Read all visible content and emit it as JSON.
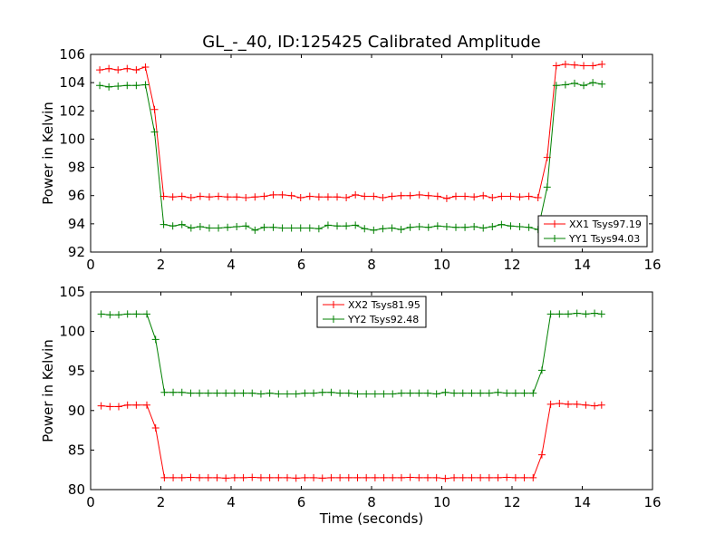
{
  "chart_data": [
    {
      "type": "line",
      "title": "GL_-_40, ID:125425 Calibrated Amplitude",
      "xlabel": "",
      "ylabel": "Power in Kelvin",
      "xlim": [
        0,
        16
      ],
      "ylim": [
        92,
        106
      ],
      "xticks": [
        "0",
        "2",
        "4",
        "6",
        "8",
        "10",
        "12",
        "14",
        "16"
      ],
      "yticks": [
        "92",
        "94",
        "96",
        "98",
        "100",
        "102",
        "104",
        "106"
      ],
      "legend_position": "lower-right",
      "x": [
        0.26,
        0.52,
        0.78,
        1.04,
        1.3,
        1.56,
        1.82,
        2.08,
        2.34,
        2.6,
        2.86,
        3.12,
        3.38,
        3.64,
        3.9,
        4.16,
        4.42,
        4.68,
        4.94,
        5.2,
        5.46,
        5.72,
        5.98,
        6.24,
        6.5,
        6.76,
        7.02,
        7.28,
        7.54,
        7.8,
        8.06,
        8.32,
        8.58,
        8.84,
        9.1,
        9.36,
        9.62,
        9.88,
        10.14,
        10.4,
        10.66,
        10.92,
        11.18,
        11.44,
        11.7,
        11.96,
        12.22,
        12.48,
        12.74,
        13.0,
        13.26,
        13.52,
        13.78,
        14.04,
        14.3,
        14.56
      ],
      "series": [
        {
          "name": "XX1 Tsys97.19",
          "color": "#ff0000",
          "values": [
            104.9,
            105.0,
            104.9,
            105.0,
            104.9,
            105.1,
            102.1,
            95.95,
            95.9,
            95.95,
            95.85,
            95.95,
            95.9,
            95.95,
            95.9,
            95.9,
            95.85,
            95.9,
            95.95,
            96.05,
            96.05,
            96.0,
            95.85,
            95.95,
            95.9,
            95.9,
            95.9,
            95.85,
            96.05,
            95.95,
            95.95,
            95.85,
            95.95,
            96.0,
            96.0,
            96.05,
            96.0,
            95.95,
            95.8,
            95.95,
            95.95,
            95.9,
            96.0,
            95.85,
            95.95,
            95.95,
            95.9,
            95.95,
            95.85,
            98.7,
            105.2,
            105.3,
            105.25,
            105.2,
            105.2,
            105.3
          ]
        },
        {
          "name": "YY1 Tsys94.03",
          "color": "#008000",
          "values": [
            103.8,
            103.7,
            103.75,
            103.8,
            103.8,
            103.85,
            100.5,
            93.95,
            93.85,
            93.95,
            93.7,
            93.8,
            93.7,
            93.7,
            93.75,
            93.8,
            93.85,
            93.55,
            93.75,
            93.75,
            93.7,
            93.7,
            93.7,
            93.7,
            93.65,
            93.9,
            93.85,
            93.85,
            93.9,
            93.65,
            93.55,
            93.65,
            93.7,
            93.6,
            93.75,
            93.8,
            93.75,
            93.85,
            93.8,
            93.75,
            93.75,
            93.8,
            93.7,
            93.8,
            93.95,
            93.85,
            93.8,
            93.75,
            93.6,
            96.6,
            103.8,
            103.85,
            103.95,
            103.8,
            104.0,
            103.9
          ]
        }
      ]
    },
    {
      "type": "line",
      "title": "",
      "xlabel": "Time (seconds)",
      "ylabel": "Power in Kelvin",
      "xlim": [
        0,
        16
      ],
      "ylim": [
        80,
        105
      ],
      "xticks": [
        "0",
        "2",
        "4",
        "6",
        "8",
        "10",
        "12",
        "14",
        "16"
      ],
      "yticks": [
        "80",
        "85",
        "90",
        "95",
        "100",
        "105"
      ],
      "legend_position": "upper-center",
      "x": [
        0.3,
        0.55,
        0.8,
        1.05,
        1.3,
        1.6,
        1.85,
        2.1,
        2.35,
        2.6,
        2.85,
        3.1,
        3.35,
        3.6,
        3.85,
        4.1,
        4.35,
        4.6,
        4.85,
        5.1,
        5.35,
        5.6,
        5.85,
        6.1,
        6.35,
        6.6,
        6.85,
        7.1,
        7.35,
        7.6,
        7.85,
        8.1,
        8.35,
        8.6,
        8.85,
        9.1,
        9.35,
        9.6,
        9.85,
        10.1,
        10.35,
        10.6,
        10.85,
        11.1,
        11.35,
        11.6,
        11.85,
        12.1,
        12.35,
        12.6,
        12.85,
        13.1,
        13.35,
        13.6,
        13.85,
        14.1,
        14.35,
        14.55
      ],
      "series": [
        {
          "name": "XX2 Tsys81.95",
          "color": "#ff0000",
          "values": [
            90.6,
            90.5,
            90.5,
            90.7,
            90.7,
            90.7,
            87.8,
            81.5,
            81.5,
            81.5,
            81.55,
            81.5,
            81.5,
            81.5,
            81.45,
            81.5,
            81.5,
            81.55,
            81.5,
            81.5,
            81.5,
            81.5,
            81.45,
            81.5,
            81.5,
            81.45,
            81.5,
            81.5,
            81.5,
            81.5,
            81.5,
            81.5,
            81.5,
            81.5,
            81.5,
            81.55,
            81.5,
            81.5,
            81.5,
            81.4,
            81.5,
            81.5,
            81.5,
            81.5,
            81.5,
            81.5,
            81.55,
            81.5,
            81.5,
            81.5,
            84.4,
            90.8,
            90.9,
            90.8,
            90.8,
            90.7,
            90.6,
            90.7
          ]
        },
        {
          "name": "YY2 Tsys92.48",
          "color": "#008000",
          "values": [
            102.2,
            102.1,
            102.1,
            102.2,
            102.2,
            102.2,
            99.0,
            92.3,
            92.3,
            92.3,
            92.2,
            92.2,
            92.2,
            92.2,
            92.2,
            92.2,
            92.2,
            92.2,
            92.1,
            92.2,
            92.1,
            92.1,
            92.1,
            92.2,
            92.2,
            92.3,
            92.3,
            92.2,
            92.2,
            92.1,
            92.1,
            92.1,
            92.1,
            92.1,
            92.2,
            92.2,
            92.2,
            92.2,
            92.1,
            92.3,
            92.2,
            92.2,
            92.2,
            92.2,
            92.2,
            92.3,
            92.2,
            92.2,
            92.2,
            92.2,
            95.1,
            102.2,
            102.2,
            102.2,
            102.3,
            102.2,
            102.3,
            102.2
          ]
        }
      ]
    }
  ]
}
